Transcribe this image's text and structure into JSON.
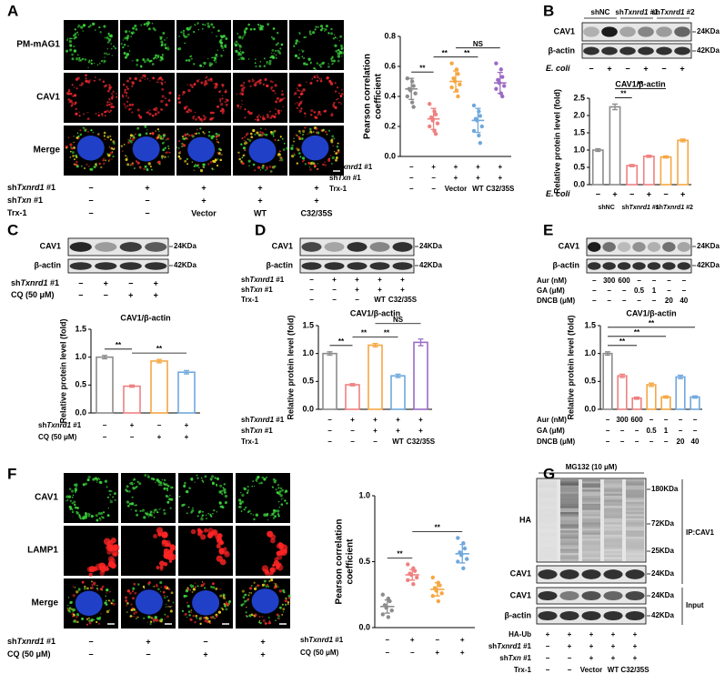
{
  "panel_a": {
    "letter": "A",
    "image_rows": [
      "PM-mAG1",
      "CAV1",
      "Merge"
    ],
    "image_row_colors": [
      "#2ca02c",
      "#e02020",
      "#000000"
    ],
    "conditions": [
      {
        "label": [
          "sh",
          "Txnrd1",
          " #1"
        ],
        "marks": [
          "−",
          "+",
          "+",
          "+",
          "+"
        ]
      },
      {
        "label": [
          "sh",
          "Txn",
          " #1"
        ],
        "marks": [
          "−",
          "−",
          "+",
          "+",
          "+"
        ]
      },
      {
        "label": [
          "Trx-1"
        ],
        "marks": [
          "−",
          "−",
          "Vector",
          "WT",
          "C32/35S"
        ]
      }
    ],
    "chart": {
      "type": "dot",
      "ylabel": [
        "Pearson correlation",
        "coefficient"
      ],
      "ylim": [
        0,
        0.8
      ],
      "yticks": [
        {
          "value": 0,
          "label": "0.0"
        },
        {
          "value": 0.2,
          "label": "0.2"
        },
        {
          "value": 0.4,
          "label": "0.4"
        },
        {
          "value": 0.6,
          "label": "0.6"
        },
        {
          "value": 0.8,
          "label": "0.8"
        }
      ],
      "colors": [
        "#8c8c8c",
        "#f08080",
        "#f5a742",
        "#6fa8dc",
        "#9b6bc4"
      ],
      "points": [
        [
          0.52,
          0.5,
          0.47,
          0.45,
          0.44,
          0.42,
          0.4,
          0.36,
          0.33
        ],
        [
          0.35,
          0.3,
          0.28,
          0.26,
          0.24,
          0.22,
          0.2,
          0.17,
          0.15
        ],
        [
          0.62,
          0.58,
          0.55,
          0.52,
          0.5,
          0.48,
          0.46,
          0.44,
          0.4
        ],
        [
          0.34,
          0.3,
          0.27,
          0.25,
          0.24,
          0.2,
          0.17,
          0.14,
          0.09
        ],
        [
          0.62,
          0.58,
          0.53,
          0.51,
          0.49,
          0.47,
          0.45,
          0.42,
          0.4
        ]
      ],
      "values": [
        0.45,
        0.25,
        0.5,
        0.24,
        0.49
      ],
      "errors": [
        0.07,
        0.07,
        0.07,
        0.08,
        0.07
      ],
      "comparisons": [
        {
          "groups": [
            0,
            1
          ],
          "label": "**"
        },
        {
          "groups": [
            1,
            2
          ],
          "label": "**"
        },
        {
          "groups": [
            2,
            3
          ],
          "label": "**"
        },
        {
          "groups": [
            2,
            4
          ],
          "label": "NS"
        }
      ],
      "conditions": [
        {
          "label": [
            "sh",
            "Txnrd1",
            " #1"
          ],
          "marks": [
            "−",
            "+",
            "+",
            "+",
            "+"
          ]
        },
        {
          "label": [
            "sh",
            "Txn",
            " #1"
          ],
          "marks": [
            "−",
            "−",
            "+",
            "+",
            "+"
          ]
        },
        {
          "label": [
            "Trx-1"
          ],
          "marks": [
            "−",
            "−",
            "Vector",
            "WT",
            "C32/35S"
          ]
        }
      ]
    }
  },
  "panel_b": {
    "letter": "B",
    "lane_groups": [
      [
        "shNC"
      ],
      [
        "sh",
        "Txnrd1",
        " #1"
      ],
      [
        "sh",
        "Txnrd1",
        " #2"
      ]
    ],
    "blot_rows": [
      "CAV1",
      "β-actin"
    ],
    "markers": [
      "24KDa",
      "42KDa"
    ],
    "conditions": [
      {
        "label": [
          "E. coli"
        ],
        "marks": [
          "−",
          "+",
          "−",
          "+",
          "−",
          "+"
        ]
      }
    ],
    "chart": {
      "type": "bar",
      "title": "CAV1/β-actin",
      "ylabel": "Relative protein level (fold)",
      "ylim": [
        0,
        2.5
      ],
      "yticks": [
        {
          "value": 0,
          "label": "0.0"
        },
        {
          "value": 0.5,
          "label": "0.5"
        },
        {
          "value": 1,
          "label": "1.0"
        },
        {
          "value": 1.5,
          "label": "1.5"
        },
        {
          "value": 2,
          "label": "2.0"
        },
        {
          "value": 2.5,
          "label": "2.5"
        }
      ],
      "colors": [
        "#8c8c8c",
        "#8c8c8c",
        "#f08080",
        "#f08080",
        "#f5a742",
        "#f5a742"
      ],
      "values": [
        1.0,
        2.25,
        0.55,
        0.82,
        0.8,
        1.28
      ],
      "errors": [
        0.04,
        0.08,
        0.03,
        0.03,
        0.03,
        0.04
      ],
      "comparisons": [
        {
          "groups": [
            1,
            2
          ],
          "label": "**"
        },
        {
          "groups": [
            1,
            4
          ],
          "label": "**"
        }
      ],
      "conditions": [
        {
          "label": [
            "E. coli"
          ],
          "marks": [
            "−",
            "+",
            "−",
            "+",
            "−",
            "+"
          ]
        }
      ],
      "groups": [
        [
          "shNC"
        ],
        [
          "sh",
          "Txnrd1",
          " #1"
        ],
        [
          "sh",
          "Txnrd1",
          " #2"
        ]
      ]
    }
  },
  "panel_c": {
    "letter": "C",
    "blot_rows": [
      "CAV1",
      "β-actin"
    ],
    "markers": [
      "24KDa",
      "42KDa"
    ],
    "conditions": [
      {
        "label": [
          "sh",
          "Txnrd1",
          " #1"
        ],
        "marks": [
          "−",
          "+",
          "−",
          "+"
        ]
      },
      {
        "label": [
          "CQ (50 μM)"
        ],
        "marks": [
          "−",
          "−",
          "+",
          "+"
        ]
      }
    ],
    "chart": {
      "type": "bar",
      "title": "CAV1/β-actin",
      "ylabel": "Relative protein level (fold)",
      "ylim": [
        0,
        1.5
      ],
      "yticks": [
        {
          "value": 0,
          "label": "0.0"
        },
        {
          "value": 0.5,
          "label": "0.5"
        },
        {
          "value": 1,
          "label": "1.0"
        },
        {
          "value": 1.5,
          "label": "1.5"
        }
      ],
      "colors": [
        "#8c8c8c",
        "#f08080",
        "#f5a742",
        "#6fa8dc"
      ],
      "values": [
        1.0,
        0.48,
        0.93,
        0.73
      ],
      "errors": [
        0.03,
        0.02,
        0.03,
        0.03
      ],
      "comparisons": [
        {
          "groups": [
            0,
            1
          ],
          "label": "**"
        },
        {
          "groups": [
            1,
            3
          ],
          "label": "**"
        }
      ],
      "conditions": [
        {
          "label": [
            "sh",
            "Txnrd1",
            " #1"
          ],
          "marks": [
            "−",
            "+",
            "−",
            "+"
          ]
        },
        {
          "label": [
            "CQ (50 μM)"
          ],
          "marks": [
            "−",
            "−",
            "+",
            "+"
          ]
        }
      ]
    }
  },
  "panel_d": {
    "letter": "D",
    "blot_rows": [
      "CAV1",
      "β-actin"
    ],
    "markers": [
      "24KDa",
      "42KDa"
    ],
    "conditions": [
      {
        "label": [
          "sh",
          "Txnrd1",
          " #1"
        ],
        "marks": [
          "−",
          "+",
          "+",
          "+",
          "+"
        ]
      },
      {
        "label": [
          "sh",
          "Txn",
          " #1"
        ],
        "marks": [
          "−",
          "−",
          "+",
          "+",
          "+"
        ]
      },
      {
        "label": [
          "Trx-1"
        ],
        "marks": [
          "−",
          "−",
          "−",
          "WT",
          "C32/35S"
        ]
      }
    ],
    "chart": {
      "type": "bar",
      "title": "CAV1/β-actin",
      "ylabel": "Relative protein level (fold)",
      "ylim": [
        0,
        1.5
      ],
      "yticks": [
        {
          "value": 0,
          "label": "0.0"
        },
        {
          "value": 0.5,
          "label": "0.5"
        },
        {
          "value": 1,
          "label": "1.0"
        },
        {
          "value": 1.5,
          "label": "1.5"
        }
      ],
      "colors": [
        "#8c8c8c",
        "#f08080",
        "#f5a742",
        "#6fa8dc",
        "#9b6bc4"
      ],
      "values": [
        1.0,
        0.44,
        1.15,
        0.6,
        1.2
      ],
      "errors": [
        0.03,
        0.02,
        0.03,
        0.03,
        0.06
      ],
      "comparisons": [
        {
          "groups": [
            0,
            1
          ],
          "label": "**"
        },
        {
          "groups": [
            1,
            2
          ],
          "label": "**"
        },
        {
          "groups": [
            2,
            3
          ],
          "label": "**"
        },
        {
          "groups": [
            2,
            4
          ],
          "label": "NS"
        }
      ],
      "conditions": [
        {
          "label": [
            "sh",
            "Txnrd1",
            " #1"
          ],
          "marks": [
            "−",
            "+",
            "+",
            "+",
            "+"
          ]
        },
        {
          "label": [
            "sh",
            "Txn",
            " #1"
          ],
          "marks": [
            "−",
            "−",
            "+",
            "+",
            "+"
          ]
        },
        {
          "label": [
            "Trx-1"
          ],
          "marks": [
            "−",
            "−",
            "−",
            "WT",
            "C32/35S"
          ]
        }
      ]
    }
  },
  "panel_e": {
    "letter": "E",
    "blot_rows": [
      "CAV1",
      "β-actin"
    ],
    "markers": [
      "24KDa",
      "42KDa"
    ],
    "conditions": [
      {
        "label": [
          "Aur (nM)"
        ],
        "marks": [
          "−",
          "300",
          "600",
          "−",
          "−",
          "−",
          "−"
        ]
      },
      {
        "label": [
          "GA (μM)"
        ],
        "marks": [
          "−",
          "−",
          "−",
          "0.5",
          "1",
          "−",
          "−"
        ]
      },
      {
        "label": [
          "DNCB (μM)"
        ],
        "marks": [
          "−",
          "−",
          "−",
          "−",
          "−",
          "20",
          "40"
        ]
      }
    ],
    "chart": {
      "type": "bar",
      "title": "CAV1/β-actin",
      "ylabel": "Relative protein level (fold)",
      "ylim": [
        0,
        1.5
      ],
      "yticks": [
        {
          "value": 0,
          "label": "0.0"
        },
        {
          "value": 0.5,
          "label": "0.5"
        },
        {
          "value": 1,
          "label": "1.0"
        },
        {
          "value": 1.5,
          "label": "1.5"
        }
      ],
      "colors": [
        "#8c8c8c",
        "#f08080",
        "#f08080",
        "#f5a742",
        "#f5a742",
        "#6fa8dc",
        "#6fa8dc"
      ],
      "values": [
        1.0,
        0.6,
        0.2,
        0.44,
        0.22,
        0.58,
        0.22
      ],
      "errors": [
        0.03,
        0.03,
        0.02,
        0.03,
        0.02,
        0.03,
        0.02
      ],
      "comparisons": [
        {
          "groups": [
            0,
            2
          ],
          "label": "**"
        },
        {
          "groups": [
            0,
            4
          ],
          "label": "**"
        },
        {
          "groups": [
            0,
            6
          ],
          "label": "**"
        }
      ],
      "conditions": [
        {
          "label": [
            "Aur (nM)"
          ],
          "marks": [
            "−",
            "300",
            "600",
            "−",
            "−",
            "−",
            "−"
          ]
        },
        {
          "label": [
            "GA (μM)"
          ],
          "marks": [
            "−",
            "−",
            "−",
            "0.5",
            "1",
            "−",
            "−"
          ]
        },
        {
          "label": [
            "DNCB (μM)"
          ],
          "marks": [
            "−",
            "−",
            "−",
            "−",
            "−",
            "20",
            "40"
          ]
        }
      ]
    }
  },
  "panel_f": {
    "letter": "F",
    "image_rows": [
      "CAV1",
      "LAMP1",
      "Merge"
    ],
    "image_row_colors": [
      "#2ca02c",
      "#e02020",
      "#000000"
    ],
    "conditions": [
      {
        "label": [
          "sh",
          "Txnrd1",
          " #1"
        ],
        "marks": [
          "−",
          "+",
          "−",
          "+"
        ]
      },
      {
        "label": [
          "CQ (50 μM)"
        ],
        "marks": [
          "−",
          "−",
          "+",
          "+"
        ]
      }
    ],
    "chart": {
      "type": "dot",
      "ylabel": [
        "Pearson correlation",
        "coefficient"
      ],
      "ylim": [
        0,
        1.0
      ],
      "yticks": [
        {
          "value": 0,
          "label": "0.0"
        },
        {
          "value": 0.5,
          "label": "0.5"
        },
        {
          "value": 1,
          "label": "1.0"
        }
      ],
      "colors": [
        "#8c8c8c",
        "#f08080",
        "#f5a742",
        "#6fa8dc"
      ],
      "points": [
        [
          0.25,
          0.22,
          0.2,
          0.17,
          0.15,
          0.13,
          0.1,
          0.08
        ],
        [
          0.48,
          0.45,
          0.43,
          0.41,
          0.4,
          0.38,
          0.36,
          0.33
        ],
        [
          0.38,
          0.34,
          0.32,
          0.3,
          0.28,
          0.26,
          0.24,
          0.2
        ],
        [
          0.68,
          0.64,
          0.6,
          0.57,
          0.55,
          0.52,
          0.5,
          0.45
        ]
      ],
      "values": [
        0.16,
        0.4,
        0.29,
        0.56
      ],
      "errors": [
        0.05,
        0.04,
        0.05,
        0.07
      ],
      "comparisons": [
        {
          "groups": [
            0,
            1
          ],
          "label": "**"
        },
        {
          "groups": [
            1,
            3
          ],
          "label": "**"
        }
      ],
      "conditions": [
        {
          "label": [
            "sh",
            "Txnrd1",
            " #1"
          ],
          "marks": [
            "−",
            "+",
            "−",
            "+"
          ]
        },
        {
          "label": [
            "CQ (50 μM)"
          ],
          "marks": [
            "−",
            "−",
            "+",
            "+"
          ]
        }
      ]
    }
  },
  "panel_g": {
    "letter": "G",
    "treatment": "MG132 (10 μM)",
    "blot_rows": [
      "HA",
      "CAV1",
      "CAV1",
      "β-actin"
    ],
    "markers": [
      "180KDa",
      "72KDa",
      "25KDa",
      "24KDa",
      "24KDa",
      "42KDa"
    ],
    "brackets": [
      "IP:CAV1",
      "Input"
    ],
    "conditions": [
      {
        "label": [
          "HA-Ub"
        ],
        "marks": [
          "+",
          "+",
          "+",
          "+",
          "+"
        ]
      },
      {
        "label": [
          "sh",
          "Txnrd1",
          " #1"
        ],
        "marks": [
          "−",
          "+",
          "+",
          "+",
          "+"
        ]
      },
      {
        "label": [
          "sh",
          "Txn",
          " #1"
        ],
        "marks": [
          "−",
          "−",
          "+",
          "+",
          "+"
        ]
      },
      {
        "label": [
          "Trx-1"
        ],
        "marks": [
          "−",
          "−",
          "Vector",
          "WT",
          "C32/35S"
        ]
      }
    ]
  }
}
